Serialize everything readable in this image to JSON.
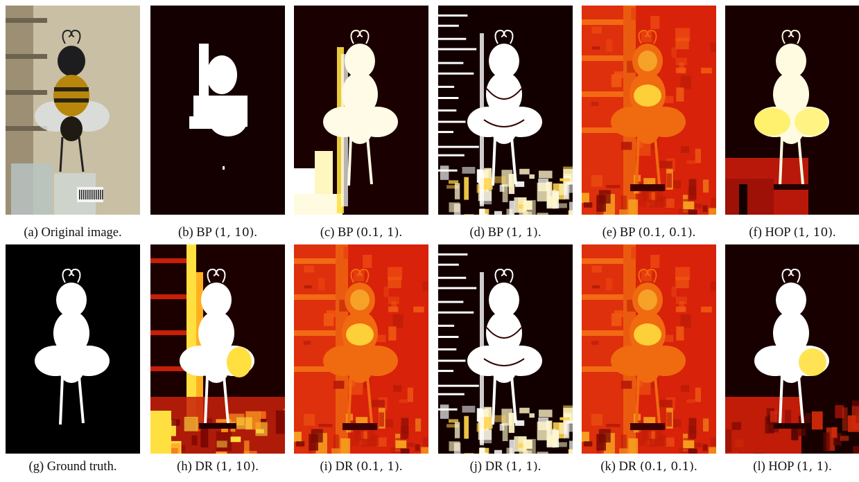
{
  "figure": {
    "panels": [
      {
        "id": "a",
        "style": "photo",
        "caption_prefix": "(a) ",
        "caption_text": "Original image.",
        "caption_math": ""
      },
      {
        "id": "b",
        "style": "binary",
        "caption_prefix": "(b) ",
        "caption_text": "BP ",
        "caption_math": "(1, 10)",
        "caption_suffix": "."
      },
      {
        "id": "c",
        "style": "glow",
        "caption_prefix": "(c) ",
        "caption_text": "BP ",
        "caption_math": "(0.1, 1)",
        "caption_suffix": "."
      },
      {
        "id": "d",
        "style": "noisy",
        "caption_prefix": "(d) ",
        "caption_text": "BP ",
        "caption_math": "(1, 1)",
        "caption_suffix": "."
      },
      {
        "id": "e",
        "style": "red",
        "caption_prefix": "(e) ",
        "caption_text": "BP ",
        "caption_math": "(0.1, 0.1)",
        "caption_suffix": "."
      },
      {
        "id": "f",
        "style": "hop",
        "caption_prefix": "(f) ",
        "caption_text": "HOP ",
        "caption_math": "(1, 10)",
        "caption_suffix": "."
      },
      {
        "id": "g",
        "style": "gt",
        "caption_prefix": "(g) ",
        "caption_text": "Ground truth.",
        "caption_math": ""
      },
      {
        "id": "h",
        "style": "dr-hot",
        "caption_prefix": "(h) ",
        "caption_text": "DR ",
        "caption_math": "(1, 10)",
        "caption_suffix": "."
      },
      {
        "id": "i",
        "style": "red",
        "caption_prefix": "(i) ",
        "caption_text": "DR ",
        "caption_math": "(0.1, 1)",
        "caption_suffix": "."
      },
      {
        "id": "j",
        "style": "noisy",
        "caption_prefix": "(j) ",
        "caption_text": "DR ",
        "caption_math": "(1, 1)",
        "caption_suffix": "."
      },
      {
        "id": "k",
        "style": "red",
        "caption_prefix": "(k) ",
        "caption_text": "DR ",
        "caption_math": "(0.1, 0.1)",
        "caption_suffix": "."
      },
      {
        "id": "l",
        "style": "hop2",
        "caption_prefix": "(l) ",
        "caption_text": "HOP ",
        "caption_math": "(1, 1)",
        "caption_suffix": "."
      }
    ]
  },
  "colors": {
    "background_dark": "#200000",
    "heat_red": "#d8220a",
    "heat_orange": "#f06a10",
    "heat_yellow": "#ffe040",
    "white": "#ffffff",
    "photo_wall": "#c9bfa4"
  }
}
